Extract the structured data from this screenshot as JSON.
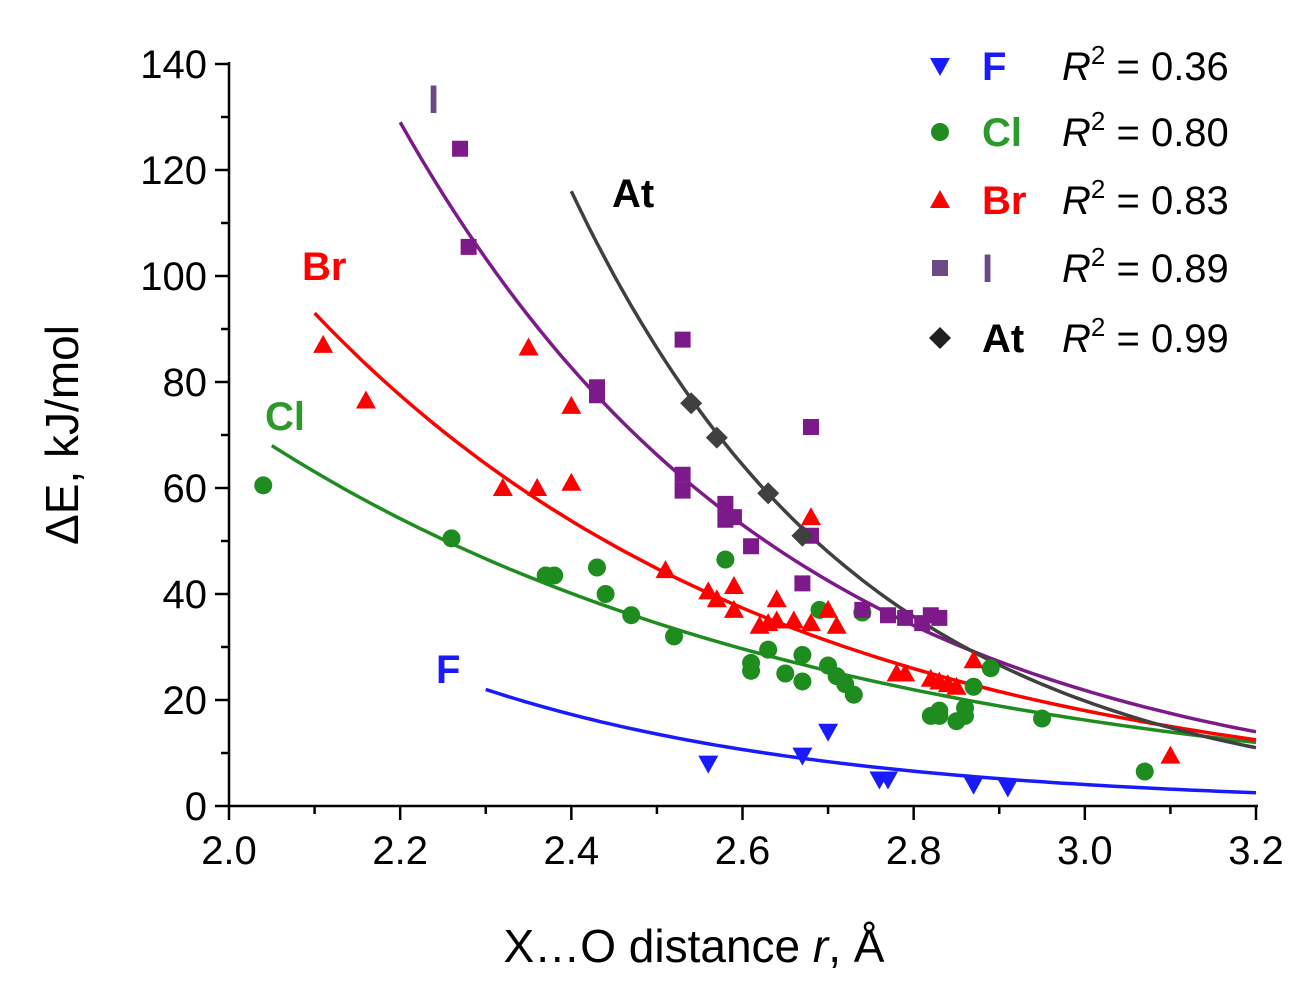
{
  "chart_data": {
    "type": "scatter",
    "xlabel_prefix": "X…O distance ",
    "xlabel_var": "r",
    "xlabel_suffix": ", Å",
    "ylabel_symbol": "ΔE",
    "ylabel_unit": ", kJ/mol",
    "xlim": [
      2.0,
      3.2
    ],
    "ylim": [
      0,
      140
    ],
    "xticks": [
      "2.0",
      "2.2",
      "2.4",
      "2.6",
      "2.8",
      "3.0",
      "3.2"
    ],
    "yticks": [
      "0",
      "20",
      "40",
      "60",
      "80",
      "100",
      "120",
      "140"
    ],
    "r2_prefix": "R",
    "r2_exp": "2",
    "series": [
      {
        "name": "F",
        "color": "#1a1aff",
        "marker": "triangle-down",
        "r2": " = 0.36",
        "curve_label": "F",
        "fit_x": [
          2.3,
          3.2
        ],
        "fit_y0": 22,
        "fit_y1": 2.5,
        "x": [
          2.56,
          2.67,
          2.7,
          2.76,
          2.77,
          2.87,
          2.91
        ],
        "y": [
          8,
          9.5,
          14,
          5,
          5,
          4,
          3.5
        ]
      },
      {
        "name": "Cl",
        "color": "#1e8c1e",
        "marker": "circle",
        "r2": " = 0.80",
        "curve_label": "Cl",
        "fit_x": [
          2.05,
          3.2
        ],
        "fit_y0": 68,
        "fit_y1": 12,
        "x": [
          2.04,
          2.26,
          2.37,
          2.38,
          2.43,
          2.44,
          2.47,
          2.52,
          2.58,
          2.61,
          2.61,
          2.63,
          2.65,
          2.67,
          2.67,
          2.69,
          2.7,
          2.71,
          2.72,
          2.73,
          2.74,
          2.82,
          2.83,
          2.83,
          2.85,
          2.86,
          2.86,
          2.87,
          2.89,
          2.95,
          3.07
        ],
        "y": [
          60.5,
          50.5,
          43.5,
          43.5,
          45,
          40,
          36,
          32,
          46.5,
          27,
          25.5,
          29.5,
          25,
          28.5,
          23.5,
          37,
          26.5,
          24.5,
          23,
          21,
          36.5,
          17,
          18,
          17,
          16,
          17,
          18.5,
          22.5,
          26,
          16.5,
          6.5
        ]
      },
      {
        "name": "Br",
        "color": "#ff0000",
        "marker": "triangle-up",
        "r2": " = 0.83",
        "curve_label": "Br",
        "fit_x": [
          2.1,
          3.2
        ],
        "fit_y0": 93,
        "fit_y1": 12.5,
        "x": [
          2.11,
          2.16,
          2.32,
          2.35,
          2.36,
          2.4,
          2.4,
          2.51,
          2.56,
          2.57,
          2.59,
          2.59,
          2.62,
          2.63,
          2.64,
          2.64,
          2.66,
          2.68,
          2.68,
          2.7,
          2.71,
          2.78,
          2.79,
          2.82,
          2.83,
          2.84,
          2.85,
          2.87,
          3.1
        ],
        "y": [
          87,
          76.5,
          60,
          86.5,
          60,
          75.5,
          61,
          44.5,
          40.5,
          39,
          41.5,
          37,
          34,
          34.5,
          35,
          39,
          35,
          34.5,
          54.5,
          37,
          34,
          25,
          25,
          24,
          23.5,
          23,
          22.5,
          27.5,
          9.5
        ]
      },
      {
        "name": "I",
        "color": "#7d1a8a",
        "marker": "square",
        "r2": " = 0.89",
        "curve_label": "I",
        "fit_x": [
          2.2,
          3.2
        ],
        "fit_y0": 129,
        "fit_y1": 14,
        "x": [
          2.27,
          2.28,
          2.43,
          2.43,
          2.53,
          2.53,
          2.53,
          2.58,
          2.58,
          2.59,
          2.61,
          2.67,
          2.68,
          2.68,
          2.74,
          2.77,
          2.79,
          2.81,
          2.82,
          2.83
        ],
        "y": [
          124,
          105.5,
          79,
          77.5,
          88,
          62.5,
          59.5,
          57,
          54,
          54.5,
          49,
          42,
          71.5,
          51,
          37,
          36,
          35.5,
          34.5,
          36,
          35.5
        ]
      },
      {
        "name": "At",
        "color": "#404040",
        "marker": "diamond",
        "r2": " = 0.99",
        "curve_label": "At",
        "fit_x": [
          2.4,
          3.2
        ],
        "fit_y0": 116,
        "fit_y1": 11,
        "x": [
          2.54,
          2.57,
          2.63,
          2.67
        ],
        "y": [
          76,
          69.5,
          59,
          51
        ]
      }
    ]
  }
}
